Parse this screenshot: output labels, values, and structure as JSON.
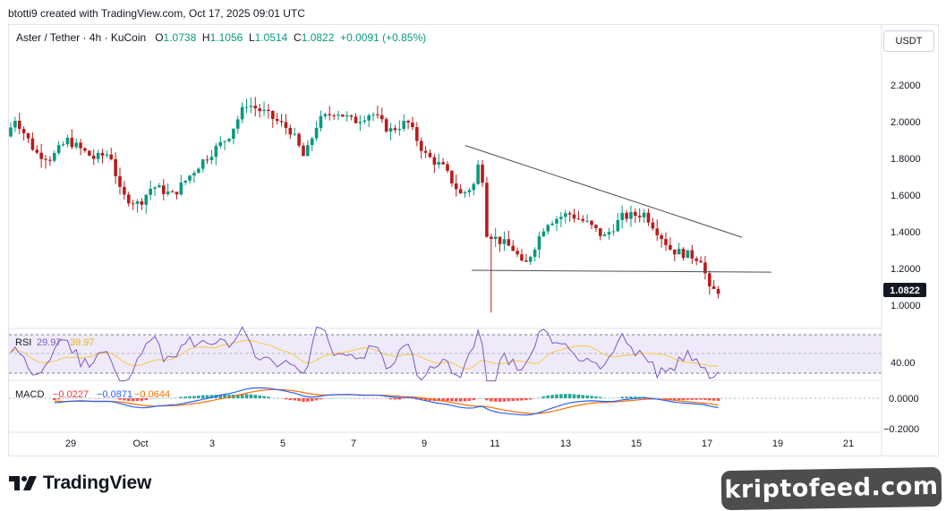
{
  "header": {
    "text": "btotti9 created with TradingView.com, Oct 17, 2025 09:01 UTC"
  },
  "legend": {
    "symbol": "Aster / Tether · 4h · KuCoin",
    "open_label": "O",
    "open": "1.0738",
    "high_label": "H",
    "high": "1.1056",
    "low_label": "L",
    "low": "1.0514",
    "close_label": "C",
    "close": "1.0822",
    "change": "+0.0091 (+0.85%)"
  },
  "currency_button": "USDT",
  "price_label": "1.0822",
  "rsi": {
    "label": "RSI",
    "value": "29.97",
    "ma": "39.97",
    "level_label": "40.00"
  },
  "macd": {
    "label": "MACD",
    "hist": "−0.0227",
    "macd": "−0.0871",
    "signal": "−0.0644"
  },
  "branding": {
    "logo_text": "TradingView"
  },
  "watermark": {
    "text": "kriptofeed.com"
  },
  "colors": {
    "up": "#089981",
    "down": "#b71c1c",
    "rsi": "#7e57c2",
    "rsi_ma": "#f7c948",
    "macd": "#2962ff",
    "signal": "#ff6d00"
  },
  "chart_data": {
    "type": "candlestick",
    "y_ticks": [
      "2.2000",
      "2.0000",
      "1.8000",
      "1.6000",
      "1.4000",
      "1.2000",
      "1.0000"
    ],
    "ylim": [
      0.95,
      2.3
    ],
    "x_ticks": [
      "29",
      "Oct",
      "3",
      "5",
      "7",
      "9",
      "11",
      "13",
      "15",
      "17",
      "19",
      "21"
    ],
    "rsi_ticks": [
      "40.00"
    ],
    "macd_ticks": [
      "0.0000",
      "−0.2000"
    ],
    "trendlines": [
      {
        "name": "descending resistance",
        "from": [
          "Oct 10 ~22:00",
          1.87
        ],
        "to": [
          "Oct 18 ~08:00",
          1.37
        ]
      },
      {
        "name": "horizontal support",
        "from": [
          "Oct 10 ~20:00",
          1.19
        ],
        "to": [
          "Oct 18 ~14:00",
          1.18
        ]
      }
    ],
    "last": {
      "open": 1.0738,
      "high": 1.1056,
      "low": 1.0514,
      "close": 1.0822
    }
  }
}
